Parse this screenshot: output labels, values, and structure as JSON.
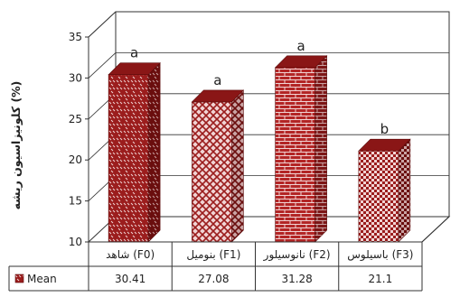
{
  "chart_data": {
    "type": "bar",
    "style": "3d",
    "ylabel": "کلونیزاسیون ریشه (%)",
    "yticks": [
      "10",
      "15",
      "20",
      "25",
      "30",
      "35"
    ],
    "ylim": [
      10,
      35
    ],
    "grid": true,
    "categories": [
      "شاهد (F0)",
      "بنومیل (F1)",
      "نانوسیلور (F2)",
      "باسیلوس (F3)"
    ],
    "series": [
      {
        "name": "Mean",
        "values": [
          30.41,
          27.08,
          31.28,
          21.1
        ],
        "value_labels": [
          "30.41",
          "27.08",
          "31.28",
          "21.1"
        ]
      }
    ],
    "annotations": [
      "a",
      "a",
      "a",
      "b"
    ],
    "colors": {
      "bar": "#9b1d1d",
      "bar_side": "#6a0e0e",
      "bar_top": "#8a1616",
      "pattern": "#f1d4d4",
      "grid": "#333333"
    }
  }
}
